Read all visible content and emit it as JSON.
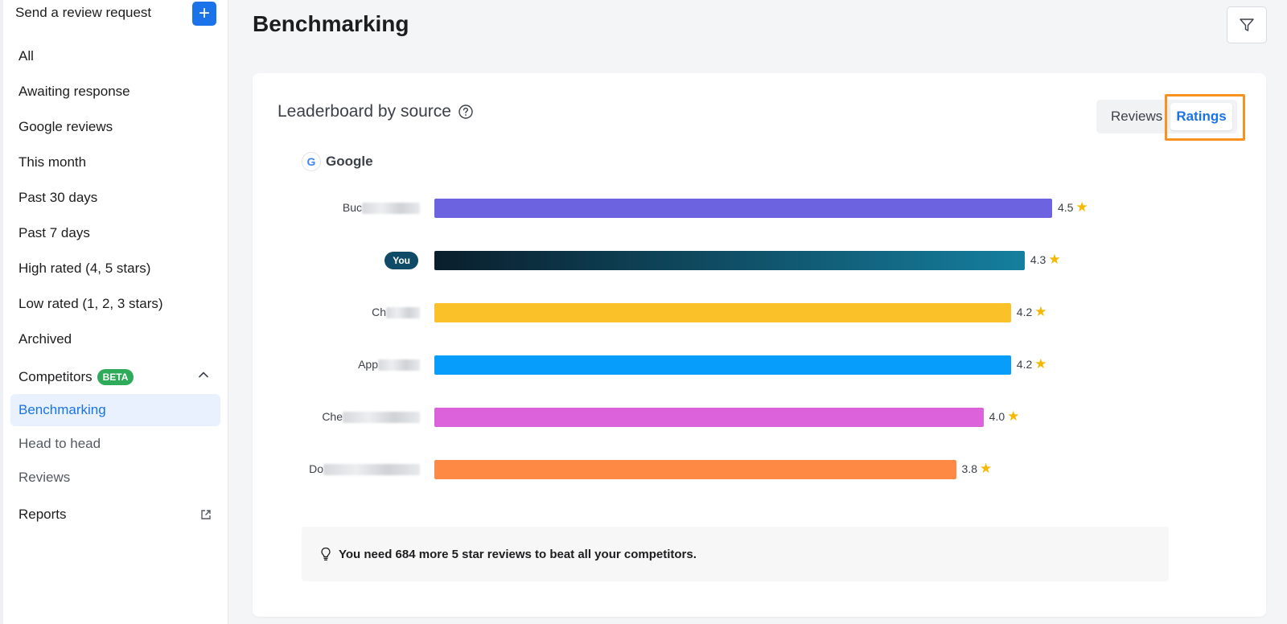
{
  "sidebar": {
    "send_request_label": "Send a review request",
    "add_icon": "plus-icon",
    "items": [
      {
        "label": "All"
      },
      {
        "label": "Awaiting response"
      },
      {
        "label": "Google reviews"
      },
      {
        "label": "This month"
      },
      {
        "label": "Past 30 days"
      },
      {
        "label": "Past 7 days"
      },
      {
        "label": "High rated (4, 5 stars)"
      },
      {
        "label": "Low rated (1, 2, 3 stars)"
      },
      {
        "label": "Archived"
      }
    ],
    "competitors": {
      "label": "Competitors",
      "badge": "BETA",
      "badge_color": "#2eaa5b"
    },
    "sub_items": [
      {
        "label": "Benchmarking",
        "active": true
      },
      {
        "label": "Head to head",
        "active": false
      },
      {
        "label": "Reviews",
        "active": false
      }
    ],
    "reports_label": "Reports"
  },
  "header": {
    "title": "Benchmarking",
    "filter_icon": "filter-icon"
  },
  "card": {
    "title": "Leaderboard by source",
    "toggle": {
      "reviews_label": "Reviews",
      "ratings_label": "Ratings",
      "selected": "Ratings"
    },
    "source": {
      "name": "Google",
      "logo": "G"
    },
    "tip": "You need 684 more 5 star reviews to beat all your competitors."
  },
  "chart_data": {
    "type": "bar",
    "orientation": "horizontal",
    "source": "Google",
    "categories": [
      "Buc",
      "You",
      "Ch",
      "App",
      "Che",
      "Do"
    ],
    "values": [
      4.5,
      4.3,
      4.2,
      4.2,
      4.0,
      3.8
    ],
    "value_labels": [
      "4.5",
      "4.3",
      "4.2",
      "4.2",
      "4.0",
      "3.8"
    ],
    "colors": [
      "#6b63df",
      "gradient:#0a1e2c-#157f9f",
      "#fac128",
      "#079efb",
      "#dc62dc",
      "#fd8944"
    ],
    "xlim": [
      0,
      5
    ]
  },
  "colors": {
    "accent": "#1a73e8",
    "you_badge": "#0f4a66",
    "highlight_border": "#f7921e"
  }
}
